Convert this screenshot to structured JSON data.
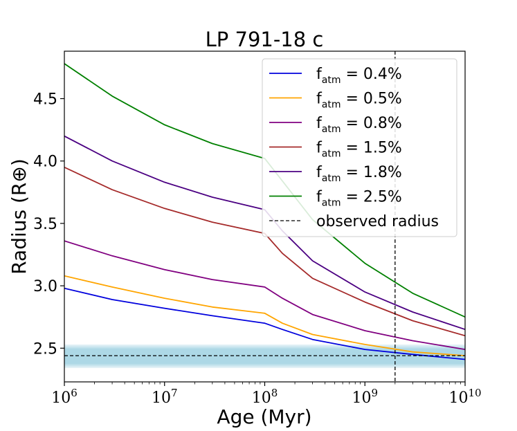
{
  "chart_data": {
    "type": "line",
    "title": "LP 791-18 c",
    "xlabel": "Age (Myr)",
    "ylabel": "Radius (R⊕)",
    "xscale": "log",
    "xlim": [
      1000000,
      10000000000
    ],
    "ylim": [
      2.23,
      4.88
    ],
    "x_ticks": [
      {
        "base": "10",
        "exp": "6"
      },
      {
        "base": "10",
        "exp": "7"
      },
      {
        "base": "10",
        "exp": "8"
      },
      {
        "base": "10",
        "exp": "9"
      },
      {
        "base": "10",
        "exp": "10"
      }
    ],
    "y_ticks": [
      "2.5",
      "3.0",
      "3.5",
      "4.0",
      "4.5"
    ],
    "legend_position": "top-right",
    "series": [
      {
        "name": "f_atm = 0.4%",
        "label_prefix": "f",
        "label_sub": "atm",
        "label_suffix": " = 0.4%",
        "color": "#0000dd",
        "points": [
          [
            1000000,
            2.98
          ],
          [
            3000000,
            2.89
          ],
          [
            10000000,
            2.82
          ],
          [
            30000000,
            2.76
          ],
          [
            100000000,
            2.7
          ],
          [
            150000000,
            2.65
          ],
          [
            300000000,
            2.57
          ],
          [
            1000000000,
            2.49
          ],
          [
            3000000000,
            2.45
          ],
          [
            10000000000,
            2.41
          ]
        ]
      },
      {
        "name": "f_atm = 0.5%",
        "label_prefix": "f",
        "label_sub": "atm",
        "label_suffix": " = 0.5%",
        "color": "#ffa500",
        "points": [
          [
            1000000,
            3.08
          ],
          [
            3000000,
            2.99
          ],
          [
            10000000,
            2.9
          ],
          [
            30000000,
            2.83
          ],
          [
            100000000,
            2.78
          ],
          [
            150000000,
            2.7
          ],
          [
            300000000,
            2.61
          ],
          [
            1000000000,
            2.53
          ],
          [
            3000000000,
            2.47
          ],
          [
            10000000000,
            2.44
          ]
        ]
      },
      {
        "name": "f_atm = 0.8%",
        "label_prefix": "f",
        "label_sub": "atm",
        "label_suffix": " = 0.8%",
        "color": "#800080",
        "points": [
          [
            1000000,
            3.36
          ],
          [
            3000000,
            3.24
          ],
          [
            10000000,
            3.13
          ],
          [
            30000000,
            3.05
          ],
          [
            100000000,
            2.99
          ],
          [
            150000000,
            2.9
          ],
          [
            300000000,
            2.77
          ],
          [
            1000000000,
            2.64
          ],
          [
            3000000000,
            2.56
          ],
          [
            10000000000,
            2.49
          ]
        ]
      },
      {
        "name": "f_atm = 1.5%",
        "label_prefix": "f",
        "label_sub": "atm",
        "label_suffix": " = 1.5%",
        "color": "#a52a2a",
        "points": [
          [
            1000000,
            3.95
          ],
          [
            3000000,
            3.77
          ],
          [
            10000000,
            3.62
          ],
          [
            30000000,
            3.51
          ],
          [
            100000000,
            3.42
          ],
          [
            150000000,
            3.26
          ],
          [
            300000000,
            3.06
          ],
          [
            1000000000,
            2.87
          ],
          [
            3000000000,
            2.72
          ],
          [
            10000000000,
            2.6
          ]
        ]
      },
      {
        "name": "f_atm = 1.8%",
        "label_prefix": "f",
        "label_sub": "atm",
        "label_suffix": " = 1.8%",
        "color": "#4b0082",
        "points": [
          [
            1000000,
            4.2
          ],
          [
            3000000,
            4.0
          ],
          [
            10000000,
            3.83
          ],
          [
            30000000,
            3.71
          ],
          [
            100000000,
            3.61
          ],
          [
            150000000,
            3.44
          ],
          [
            300000000,
            3.2
          ],
          [
            1000000000,
            2.95
          ],
          [
            3000000000,
            2.79
          ],
          [
            10000000000,
            2.65
          ]
        ]
      },
      {
        "name": "f_atm = 2.5%",
        "label_prefix": "f",
        "label_sub": "atm",
        "label_suffix": " = 2.5%",
        "color": "#008000",
        "points": [
          [
            1000000,
            4.78
          ],
          [
            3000000,
            4.52
          ],
          [
            10000000,
            4.29
          ],
          [
            30000000,
            4.14
          ],
          [
            100000000,
            4.02
          ],
          [
            150000000,
            3.84
          ],
          [
            300000000,
            3.53
          ],
          [
            1000000000,
            3.18
          ],
          [
            3000000000,
            2.94
          ],
          [
            10000000000,
            2.75
          ]
        ]
      }
    ],
    "observed": {
      "name": "observed radius",
      "radius": 2.44,
      "band": [
        2.34,
        2.53
      ],
      "band_color": "#add8e6",
      "line_color": "#000000"
    },
    "age_marker": {
      "x": 2000000000,
      "color": "#000000"
    }
  }
}
